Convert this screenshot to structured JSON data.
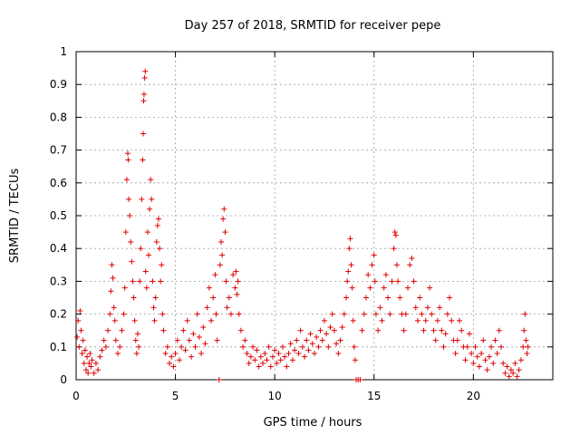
{
  "chart_data": {
    "type": "scatter",
    "title": "Day 257 of 2018, SRMTID for receiver pepe",
    "xlabel": "GPS time / hours",
    "ylabel": "SRMTID / TECUs",
    "xlim": [
      0,
      24
    ],
    "ylim": [
      0,
      1
    ],
    "xticks": [
      0,
      5,
      10,
      15,
      20
    ],
    "xtick_labels": [
      "0",
      "5",
      "10",
      "15",
      "20"
    ],
    "yticks": [
      0,
      0.1,
      0.2,
      0.3,
      0.4,
      0.5,
      0.6,
      0.7,
      0.8,
      0.9,
      1
    ],
    "ytick_labels": [
      "0",
      "0.1",
      "0.2",
      "0.3",
      "0.4",
      "0.5",
      "0.6",
      "0.7",
      "0.8",
      "0.9",
      "1"
    ],
    "grid": true,
    "marker": "+",
    "marker_color": "#e00000",
    "series": [
      {
        "name": "SRMTID",
        "points": [
          [
            0.05,
            0.13
          ],
          [
            0.1,
            0.18
          ],
          [
            0.15,
            0.1
          ],
          [
            0.2,
            0.21
          ],
          [
            0.25,
            0.15
          ],
          [
            0.3,
            0.08
          ],
          [
            0.35,
            0.12
          ],
          [
            0.4,
            0.05
          ],
          [
            0.45,
            0.09
          ],
          [
            0.5,
            0.03
          ],
          [
            0.55,
            0.07
          ],
          [
            0.6,
            0.02
          ],
          [
            0.65,
            0.05
          ],
          [
            0.7,
            0.08
          ],
          [
            0.75,
            0.04
          ],
          [
            0.8,
            0.06
          ],
          [
            0.9,
            0.02
          ],
          [
            1.0,
            0.05
          ],
          [
            1.1,
            0.03
          ],
          [
            1.2,
            0.07
          ],
          [
            1.3,
            0.09
          ],
          [
            1.4,
            0.12
          ],
          [
            1.5,
            0.1
          ],
          [
            1.6,
            0.15
          ],
          [
            1.7,
            0.2
          ],
          [
            1.75,
            0.27
          ],
          [
            1.8,
            0.35
          ],
          [
            1.85,
            0.31
          ],
          [
            1.9,
            0.22
          ],
          [
            1.95,
            0.18
          ],
          [
            2.0,
            0.12
          ],
          [
            2.1,
            0.08
          ],
          [
            2.2,
            0.1
          ],
          [
            2.3,
            0.15
          ],
          [
            2.4,
            0.2
          ],
          [
            2.45,
            0.28
          ],
          [
            2.5,
            0.45
          ],
          [
            2.55,
            0.61
          ],
          [
            2.6,
            0.69
          ],
          [
            2.62,
            0.67
          ],
          [
            2.65,
            0.55
          ],
          [
            2.7,
            0.5
          ],
          [
            2.75,
            0.42
          ],
          [
            2.8,
            0.36
          ],
          [
            2.85,
            0.3
          ],
          [
            2.9,
            0.25
          ],
          [
            2.95,
            0.18
          ],
          [
            3.0,
            0.12
          ],
          [
            3.05,
            0.08
          ],
          [
            3.1,
            0.14
          ],
          [
            3.15,
            0.1
          ],
          [
            3.2,
            0.3
          ],
          [
            3.25,
            0.4
          ],
          [
            3.3,
            0.55
          ],
          [
            3.35,
            0.67
          ],
          [
            3.38,
            0.75
          ],
          [
            3.4,
            0.85
          ],
          [
            3.42,
            0.87
          ],
          [
            3.45,
            0.92
          ],
          [
            3.48,
            0.94
          ],
          [
            3.5,
            0.33
          ],
          [
            3.55,
            0.28
          ],
          [
            3.6,
            0.45
          ],
          [
            3.65,
            0.38
          ],
          [
            3.7,
            0.52
          ],
          [
            3.75,
            0.61
          ],
          [
            3.8,
            0.55
          ],
          [
            3.85,
            0.3
          ],
          [
            3.9,
            0.22
          ],
          [
            3.95,
            0.18
          ],
          [
            4.0,
            0.25
          ],
          [
            4.05,
            0.42
          ],
          [
            4.1,
            0.47
          ],
          [
            4.15,
            0.49
          ],
          [
            4.2,
            0.4
          ],
          [
            4.25,
            0.3
          ],
          [
            4.3,
            0.35
          ],
          [
            4.35,
            0.2
          ],
          [
            4.4,
            0.15
          ],
          [
            4.5,
            0.08
          ],
          [
            4.6,
            0.1
          ],
          [
            4.7,
            0.05
          ],
          [
            4.8,
            0.07
          ],
          [
            4.9,
            0.04
          ],
          [
            5.0,
            0.08
          ],
          [
            5.1,
            0.12
          ],
          [
            5.2,
            0.06
          ],
          [
            5.3,
            0.1
          ],
          [
            5.4,
            0.15
          ],
          [
            5.5,
            0.09
          ],
          [
            5.6,
            0.18
          ],
          [
            5.7,
            0.12
          ],
          [
            5.8,
            0.07
          ],
          [
            5.9,
            0.14
          ],
          [
            6.0,
            0.1
          ],
          [
            6.1,
            0.2
          ],
          [
            6.2,
            0.13
          ],
          [
            6.3,
            0.08
          ],
          [
            6.4,
            0.16
          ],
          [
            6.5,
            0.11
          ],
          [
            6.6,
            0.22
          ],
          [
            6.7,
            0.28
          ],
          [
            6.8,
            0.18
          ],
          [
            6.9,
            0.25
          ],
          [
            7.0,
            0.32
          ],
          [
            7.05,
            0.2
          ],
          [
            7.1,
            0.12
          ],
          [
            7.2,
            0.0
          ],
          [
            7.25,
            0.35
          ],
          [
            7.3,
            0.42
          ],
          [
            7.35,
            0.38
          ],
          [
            7.4,
            0.49
          ],
          [
            7.45,
            0.52
          ],
          [
            7.5,
            0.45
          ],
          [
            7.55,
            0.3
          ],
          [
            7.6,
            0.22
          ],
          [
            7.7,
            0.25
          ],
          [
            7.8,
            0.2
          ],
          [
            7.9,
            0.32
          ],
          [
            8.0,
            0.28
          ],
          [
            8.05,
            0.33
          ],
          [
            8.1,
            0.26
          ],
          [
            8.15,
            0.3
          ],
          [
            8.2,
            0.2
          ],
          [
            8.3,
            0.15
          ],
          [
            8.4,
            0.1
          ],
          [
            8.5,
            0.12
          ],
          [
            8.6,
            0.08
          ],
          [
            8.7,
            0.05
          ],
          [
            8.8,
            0.07
          ],
          [
            8.9,
            0.1
          ],
          [
            9.0,
            0.06
          ],
          [
            9.1,
            0.09
          ],
          [
            9.2,
            0.04
          ],
          [
            9.3,
            0.07
          ],
          [
            9.4,
            0.05
          ],
          [
            9.5,
            0.08
          ],
          [
            9.6,
            0.06
          ],
          [
            9.7,
            0.1
          ],
          [
            9.8,
            0.04
          ],
          [
            9.9,
            0.07
          ],
          [
            10.0,
            0.09
          ],
          [
            10.1,
            0.05
          ],
          [
            10.2,
            0.08
          ],
          [
            10.3,
            0.06
          ],
          [
            10.4,
            0.1
          ],
          [
            10.5,
            0.07
          ],
          [
            10.6,
            0.04
          ],
          [
            10.7,
            0.08
          ],
          [
            10.8,
            0.11
          ],
          [
            10.9,
            0.06
          ],
          [
            11.0,
            0.09
          ],
          [
            11.1,
            0.12
          ],
          [
            11.2,
            0.08
          ],
          [
            11.3,
            0.15
          ],
          [
            11.4,
            0.1
          ],
          [
            11.5,
            0.07
          ],
          [
            11.6,
            0.12
          ],
          [
            11.7,
            0.09
          ],
          [
            11.8,
            0.14
          ],
          [
            11.9,
            0.11
          ],
          [
            12.0,
            0.08
          ],
          [
            12.1,
            0.13
          ],
          [
            12.2,
            0.1
          ],
          [
            12.3,
            0.15
          ],
          [
            12.4,
            0.12
          ],
          [
            12.5,
            0.18
          ],
          [
            12.6,
            0.14
          ],
          [
            12.7,
            0.1
          ],
          [
            12.8,
            0.16
          ],
          [
            12.9,
            0.2
          ],
          [
            13.0,
            0.15
          ],
          [
            13.1,
            0.11
          ],
          [
            13.2,
            0.08
          ],
          [
            13.3,
            0.12
          ],
          [
            13.4,
            0.16
          ],
          [
            13.5,
            0.2
          ],
          [
            13.6,
            0.25
          ],
          [
            13.65,
            0.3
          ],
          [
            13.7,
            0.33
          ],
          [
            13.75,
            0.4
          ],
          [
            13.8,
            0.43
          ],
          [
            13.85,
            0.35
          ],
          [
            13.9,
            0.28
          ],
          [
            13.95,
            0.18
          ],
          [
            14.0,
            0.1
          ],
          [
            14.05,
            0.06
          ],
          [
            14.1,
            0.0
          ],
          [
            14.2,
            0.0
          ],
          [
            14.3,
            0.0
          ],
          [
            14.4,
            0.15
          ],
          [
            14.5,
            0.2
          ],
          [
            14.6,
            0.25
          ],
          [
            14.7,
            0.32
          ],
          [
            14.8,
            0.28
          ],
          [
            14.9,
            0.35
          ],
          [
            15.0,
            0.38
          ],
          [
            15.05,
            0.3
          ],
          [
            15.1,
            0.2
          ],
          [
            15.2,
            0.15
          ],
          [
            15.3,
            0.22
          ],
          [
            15.4,
            0.18
          ],
          [
            15.5,
            0.28
          ],
          [
            15.6,
            0.32
          ],
          [
            15.7,
            0.25
          ],
          [
            15.8,
            0.2
          ],
          [
            15.9,
            0.3
          ],
          [
            16.0,
            0.4
          ],
          [
            16.05,
            0.45
          ],
          [
            16.1,
            0.44
          ],
          [
            16.15,
            0.35
          ],
          [
            16.2,
            0.3
          ],
          [
            16.3,
            0.25
          ],
          [
            16.4,
            0.2
          ],
          [
            16.5,
            0.15
          ],
          [
            16.6,
            0.2
          ],
          [
            16.7,
            0.28
          ],
          [
            16.8,
            0.35
          ],
          [
            16.9,
            0.37
          ],
          [
            17.0,
            0.3
          ],
          [
            17.1,
            0.22
          ],
          [
            17.2,
            0.18
          ],
          [
            17.3,
            0.25
          ],
          [
            17.4,
            0.2
          ],
          [
            17.5,
            0.15
          ],
          [
            17.6,
            0.18
          ],
          [
            17.7,
            0.22
          ],
          [
            17.8,
            0.28
          ],
          [
            17.9,
            0.2
          ],
          [
            18.0,
            0.15
          ],
          [
            18.1,
            0.12
          ],
          [
            18.2,
            0.18
          ],
          [
            18.3,
            0.22
          ],
          [
            18.4,
            0.15
          ],
          [
            18.5,
            0.1
          ],
          [
            18.6,
            0.14
          ],
          [
            18.7,
            0.2
          ],
          [
            18.8,
            0.25
          ],
          [
            18.9,
            0.18
          ],
          [
            19.0,
            0.12
          ],
          [
            19.1,
            0.08
          ],
          [
            19.2,
            0.12
          ],
          [
            19.3,
            0.18
          ],
          [
            19.4,
            0.15
          ],
          [
            19.5,
            0.1
          ],
          [
            19.6,
            0.06
          ],
          [
            19.7,
            0.1
          ],
          [
            19.8,
            0.14
          ],
          [
            19.9,
            0.08
          ],
          [
            20.0,
            0.05
          ],
          [
            20.1,
            0.1
          ],
          [
            20.2,
            0.07
          ],
          [
            20.3,
            0.04
          ],
          [
            20.4,
            0.08
          ],
          [
            20.5,
            0.12
          ],
          [
            20.6,
            0.06
          ],
          [
            20.7,
            0.03
          ],
          [
            20.8,
            0.07
          ],
          [
            20.9,
            0.1
          ],
          [
            21.0,
            0.05
          ],
          [
            21.1,
            0.12
          ],
          [
            21.2,
            0.08
          ],
          [
            21.3,
            0.15
          ],
          [
            21.4,
            0.1
          ],
          [
            21.5,
            0.05
          ],
          [
            21.6,
            0.02
          ],
          [
            21.7,
            0.04
          ],
          [
            21.8,
            0.01
          ],
          [
            21.9,
            0.03
          ],
          [
            22.0,
            0.02
          ],
          [
            22.1,
            0.05
          ],
          [
            22.2,
            0.01
          ],
          [
            22.3,
            0.03
          ],
          [
            22.4,
            0.06
          ],
          [
            22.5,
            0.1
          ],
          [
            22.55,
            0.15
          ],
          [
            22.6,
            0.2
          ],
          [
            22.65,
            0.12
          ],
          [
            22.7,
            0.08
          ],
          [
            22.75,
            0.1
          ]
        ]
      }
    ]
  }
}
